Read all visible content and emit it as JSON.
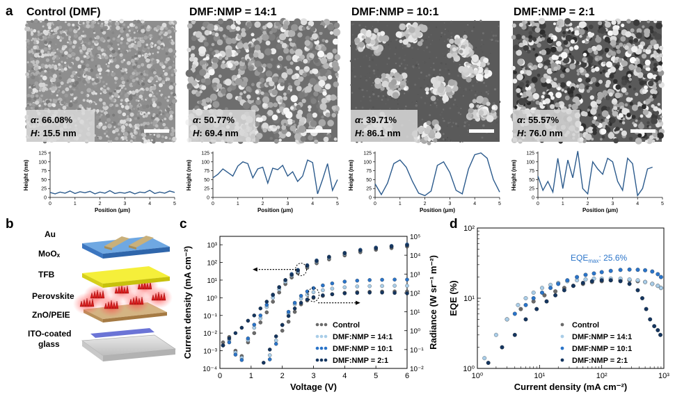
{
  "panel_letters": {
    "a": "a",
    "b": "b",
    "c": "c",
    "d": "d"
  },
  "sem_panels": [
    {
      "title": "Control (DMF)",
      "alpha_label": "α",
      "alpha_value": ": 66.08%",
      "h_label": "H",
      "h_value": ": 15.5 nm",
      "texture": "fine"
    },
    {
      "title": "DMF:NMP = 14:1",
      "alpha_label": "α",
      "alpha_value": ": 50.77%",
      "h_label": "H",
      "h_value": ": 69.4 nm",
      "texture": "medium"
    },
    {
      "title": "DMF:NMP = 10:1",
      "alpha_label": "α",
      "alpha_value": ": 39.71%",
      "h_label": "H",
      "h_value": ": 86.1 nm",
      "texture": "islands"
    },
    {
      "title": "DMF:NMP = 2:1",
      "alpha_label": "α",
      "alpha_value": ": 55.57%",
      "h_label": "H",
      "h_value": ": 76.0 nm",
      "texture": "network"
    }
  ],
  "profiles": {
    "y_label": "Height (nm)",
    "x_label": "Position (μm)",
    "y_ticks": [
      "0",
      "25",
      "50",
      "75",
      "100",
      "125"
    ],
    "x_ticks": [
      "0",
      "1",
      "2",
      "3",
      "4",
      "5"
    ],
    "line_color": "#2b5a8c",
    "series": [
      {
        "x": [
          0,
          0.2,
          0.4,
          0.6,
          0.8,
          1.0,
          1.2,
          1.4,
          1.6,
          1.8,
          2.0,
          2.2,
          2.4,
          2.6,
          2.8,
          3.0,
          3.2,
          3.4,
          3.6,
          3.8,
          4.0,
          4.2,
          4.4,
          4.6,
          4.8,
          5.0
        ],
        "y": [
          14,
          10,
          15,
          12,
          18,
          11,
          16,
          13,
          17,
          10,
          15,
          12,
          19,
          11,
          14,
          12,
          16,
          10,
          15,
          13,
          20,
          11,
          15,
          12,
          18,
          14
        ]
      },
      {
        "x": [
          0,
          0.2,
          0.4,
          0.6,
          0.8,
          1.0,
          1.2,
          1.4,
          1.6,
          1.8,
          2.0,
          2.2,
          2.4,
          2.6,
          2.8,
          3.0,
          3.2,
          3.4,
          3.6,
          3.8,
          4.0,
          4.2,
          4.4,
          4.6,
          4.8,
          5.0
        ],
        "y": [
          55,
          65,
          80,
          70,
          60,
          88,
          100,
          95,
          55,
          80,
          85,
          40,
          82,
          78,
          90,
          60,
          72,
          45,
          60,
          105,
          98,
          10,
          50,
          95,
          20,
          50
        ]
      },
      {
        "x": [
          0,
          0.25,
          0.5,
          0.75,
          1.0,
          1.25,
          1.5,
          1.75,
          2.0,
          2.25,
          2.5,
          2.75,
          3.0,
          3.25,
          3.5,
          3.75,
          4.0,
          4.25,
          4.5,
          4.75,
          5.0
        ],
        "y": [
          38,
          8,
          40,
          95,
          105,
          85,
          45,
          12,
          5,
          18,
          90,
          100,
          70,
          20,
          10,
          80,
          120,
          125,
          110,
          50,
          15
        ]
      },
      {
        "x": [
          0,
          0.2,
          0.4,
          0.6,
          0.8,
          1.0,
          1.2,
          1.4,
          1.6,
          1.8,
          2.0,
          2.2,
          2.4,
          2.6,
          2.8,
          3.0,
          3.2,
          3.4,
          3.6,
          3.8,
          4.0,
          4.2,
          4.4,
          4.6
        ],
        "y": [
          60,
          20,
          45,
          15,
          110,
          25,
          105,
          55,
          130,
          25,
          10,
          100,
          80,
          65,
          110,
          100,
          45,
          20,
          110,
          95,
          5,
          25,
          80,
          85
        ]
      }
    ]
  },
  "device_layers": [
    "Au",
    "MoOₓ",
    "TFB",
    "Perovskite",
    "ZnO/PEIE",
    "ITO-coated",
    "glass"
  ],
  "chart_data": [
    {
      "type": "scatter",
      "panel": "c",
      "xlabel": "Voltage (V)",
      "ylabel": "Current density (mA cm⁻²)",
      "y2label": "Radiance (W sr⁻¹ m⁻²)",
      "xlim": [
        0,
        6
      ],
      "ylim": [
        0.0001,
        3000
      ],
      "y2lim": [
        0.01,
        100000
      ],
      "ylog": true,
      "y2log": true,
      "xticks": [
        "0",
        "1",
        "2",
        "3",
        "4",
        "5",
        "6"
      ],
      "yticks": [
        "10⁻⁴",
        "10⁻³",
        "10⁻²",
        "10⁻¹",
        "10⁰",
        "10¹",
        "10²",
        "10³"
      ],
      "y2ticks": [
        "10⁻²",
        "10⁻¹",
        "10⁰",
        "10¹",
        "10²",
        "10³",
        "10⁴",
        "10⁵"
      ],
      "series": [
        {
          "name": "Control",
          "color": "#6a6a6a",
          "current": {
            "x": [
              0.1,
              0.3,
              0.5,
              0.7,
              0.9,
              1.1,
              1.3,
              1.5,
              1.7,
              1.9,
              2.1,
              2.3,
              2.5,
              2.8,
              3.1,
              3.5,
              4.0,
              4.5,
              5.0,
              5.5,
              6.0
            ],
            "y": [
              0.003,
              0.006,
              0.001,
              0.0005,
              0.003,
              0.01,
              0.04,
              0.15,
              0.6,
              2,
              6,
              14,
              25,
              50,
              90,
              150,
              250,
              380,
              520,
              650,
              800
            ]
          },
          "radiance": {
            "x": [
              2.0,
              2.2,
              2.4,
              2.6,
              2.8,
              3.0,
              3.3,
              3.6,
              4.0,
              4.4,
              4.8,
              5.2,
              5.6,
              6.0
            ],
            "y": [
              1,
              3,
              10,
              25,
              40,
              55,
              70,
              85,
              100,
              110,
              115,
              118,
              120,
              120
            ]
          }
        },
        {
          "name": "DMF:NMP = 14:1",
          "color": "#a9cde8",
          "current": {
            "x": [
              0.1,
              0.3,
              0.5,
              0.7,
              0.9,
              1.1,
              1.3,
              1.5,
              1.7,
              1.9,
              2.1,
              2.3,
              2.5,
              2.8,
              3.1,
              3.5,
              4.0,
              4.5,
              5.0,
              5.5,
              6.0
            ],
            "y": [
              0.002,
              0.004,
              0.0008,
              0.0004,
              0.004,
              0.02,
              0.07,
              0.3,
              1,
              3,
              8,
              18,
              30,
              60,
              110,
              180,
              300,
              450,
              620,
              780,
              950
            ]
          },
          "radiance": {
            "x": [
              1.6,
              1.8,
              2.0,
              2.2,
              2.4,
              2.6,
              2.8,
              3.0,
              3.3,
              3.6,
              4.0,
              4.4,
              4.8,
              5.2,
              5.6,
              6.0
            ],
            "y": [
              0.05,
              0.3,
              2,
              8,
              25,
              50,
              80,
              110,
              140,
              170,
              200,
              220,
              230,
              235,
              240,
              240
            ]
          }
        },
        {
          "name": "DMF:NMP = 10:1",
          "color": "#2a74c9",
          "current": {
            "x": [
              0.1,
              0.3,
              0.5,
              0.7,
              0.9,
              1.1,
              1.3,
              1.5,
              1.7,
              1.9,
              2.1,
              2.3,
              2.5,
              2.8,
              3.1,
              3.5,
              4.0,
              4.5,
              5.0,
              5.5,
              6.0
            ],
            "y": [
              0.002,
              0.003,
              0.0006,
              0.0003,
              0.005,
              0.03,
              0.1,
              0.4,
              1.4,
              4,
              10,
              22,
              38,
              70,
              130,
              210,
              350,
              520,
              700,
              870,
              1050
            ]
          },
          "radiance": {
            "x": [
              1.6,
              1.8,
              2.0,
              2.2,
              2.4,
              2.6,
              2.8,
              3.0,
              3.3,
              3.6,
              4.0,
              4.4,
              4.8,
              5.2,
              5.6,
              6.0
            ],
            "y": [
              0.03,
              0.2,
              2,
              10,
              30,
              70,
              120,
              180,
              250,
              320,
              400,
              450,
              480,
              500,
              510,
              510
            ]
          }
        },
        {
          "name": "DMF:NMP = 2:1",
          "color": "#14355f",
          "current": {
            "x": [
              0.1,
              0.3,
              0.5,
              0.7,
              0.9,
              1.1,
              1.3,
              1.5,
              1.7,
              1.9,
              2.1,
              2.3,
              2.5,
              2.8,
              3.1,
              3.5,
              4.0,
              4.5,
              5.0,
              5.5,
              6.0
            ],
            "y": [
              0.002,
              0.005,
              0.01,
              0.02,
              0.05,
              0.1,
              0.25,
              0.6,
              1.5,
              4,
              10,
              20,
              35,
              65,
              120,
              200,
              330,
              480,
              640,
              800,
              950
            ]
          },
          "radiance": {
            "x": [
              1.4,
              1.6,
              1.8,
              2.0,
              2.2,
              2.4,
              2.6,
              2.8,
              3.0,
              3.3,
              3.6,
              4.0,
              4.4,
              4.8,
              5.2,
              5.6,
              6.0
            ],
            "y": [
              0.02,
              0.1,
              0.5,
              2,
              6,
              15,
              30,
              45,
              60,
              75,
              85,
              95,
              100,
              105,
              105,
              100,
              95
            ]
          }
        }
      ]
    },
    {
      "type": "scatter",
      "panel": "d",
      "xlabel": "Current density (mA cm⁻²)",
      "ylabel": "EQE (%)",
      "xlog": true,
      "ylog": true,
      "xlim": [
        1,
        1000
      ],
      "ylim": [
        1,
        100
      ],
      "xticks": [
        "10⁰",
        "10¹",
        "10²",
        "10³"
      ],
      "yticks": [
        "10⁰",
        "10¹",
        "10²"
      ],
      "annotation": {
        "text": "EQE",
        "sub": "max",
        "suffix": ": 25.6%",
        "color": "#2a74c9"
      },
      "series": [
        {
          "name": "Control",
          "color": "#6a6a6a",
          "x": [
            3,
            5,
            8,
            12,
            18,
            25,
            35,
            50,
            70,
            100,
            140,
            200,
            280,
            380,
            500,
            650,
            800,
            900
          ],
          "y": [
            5,
            7,
            9,
            11,
            12.5,
            14,
            15,
            16,
            17,
            17.5,
            18,
            18,
            18,
            17.5,
            17,
            16,
            15,
            14
          ]
        },
        {
          "name": "DMF:NMP = 14:1",
          "color": "#a9cde8",
          "x": [
            1.3,
            2,
            3,
            4.5,
            6,
            8,
            11,
            15,
            20,
            28,
            40,
            55,
            75,
            100,
            140,
            200,
            280,
            380,
            500,
            650,
            800,
            900
          ],
          "y": [
            1.4,
            3,
            5,
            8,
            10,
            12,
            14,
            15.5,
            16.5,
            17.5,
            18,
            18.5,
            19,
            19,
            19,
            19,
            18.5,
            18,
            17,
            16,
            15,
            14
          ]
        },
        {
          "name": "DMF:NMP = 10:1",
          "color": "#2a74c9",
          "x": [
            4,
            6,
            8,
            11,
            15,
            20,
            28,
            40,
            55,
            75,
            100,
            140,
            200,
            280,
            380,
            500,
            650,
            800,
            900
          ],
          "y": [
            6,
            8,
            10,
            12,
            14,
            16,
            18,
            20,
            21.5,
            22.5,
            23.5,
            24.5,
            25.3,
            25.6,
            25.4,
            25,
            24,
            22,
            20
          ]
        },
        {
          "name": "DMF:NMP = 2:1",
          "color": "#14355f",
          "x": [
            1.5,
            2.5,
            4,
            6,
            9,
            13,
            18,
            25,
            35,
            50,
            70,
            100,
            140,
            200,
            280,
            380,
            450,
            520,
            600,
            700,
            800,
            880
          ],
          "y": [
            1.2,
            2,
            3,
            5,
            7,
            9,
            11,
            13,
            15,
            16.5,
            17.5,
            18,
            18,
            17.5,
            16,
            13,
            10,
            7,
            5,
            4,
            3.5,
            3
          ]
        }
      ]
    }
  ]
}
